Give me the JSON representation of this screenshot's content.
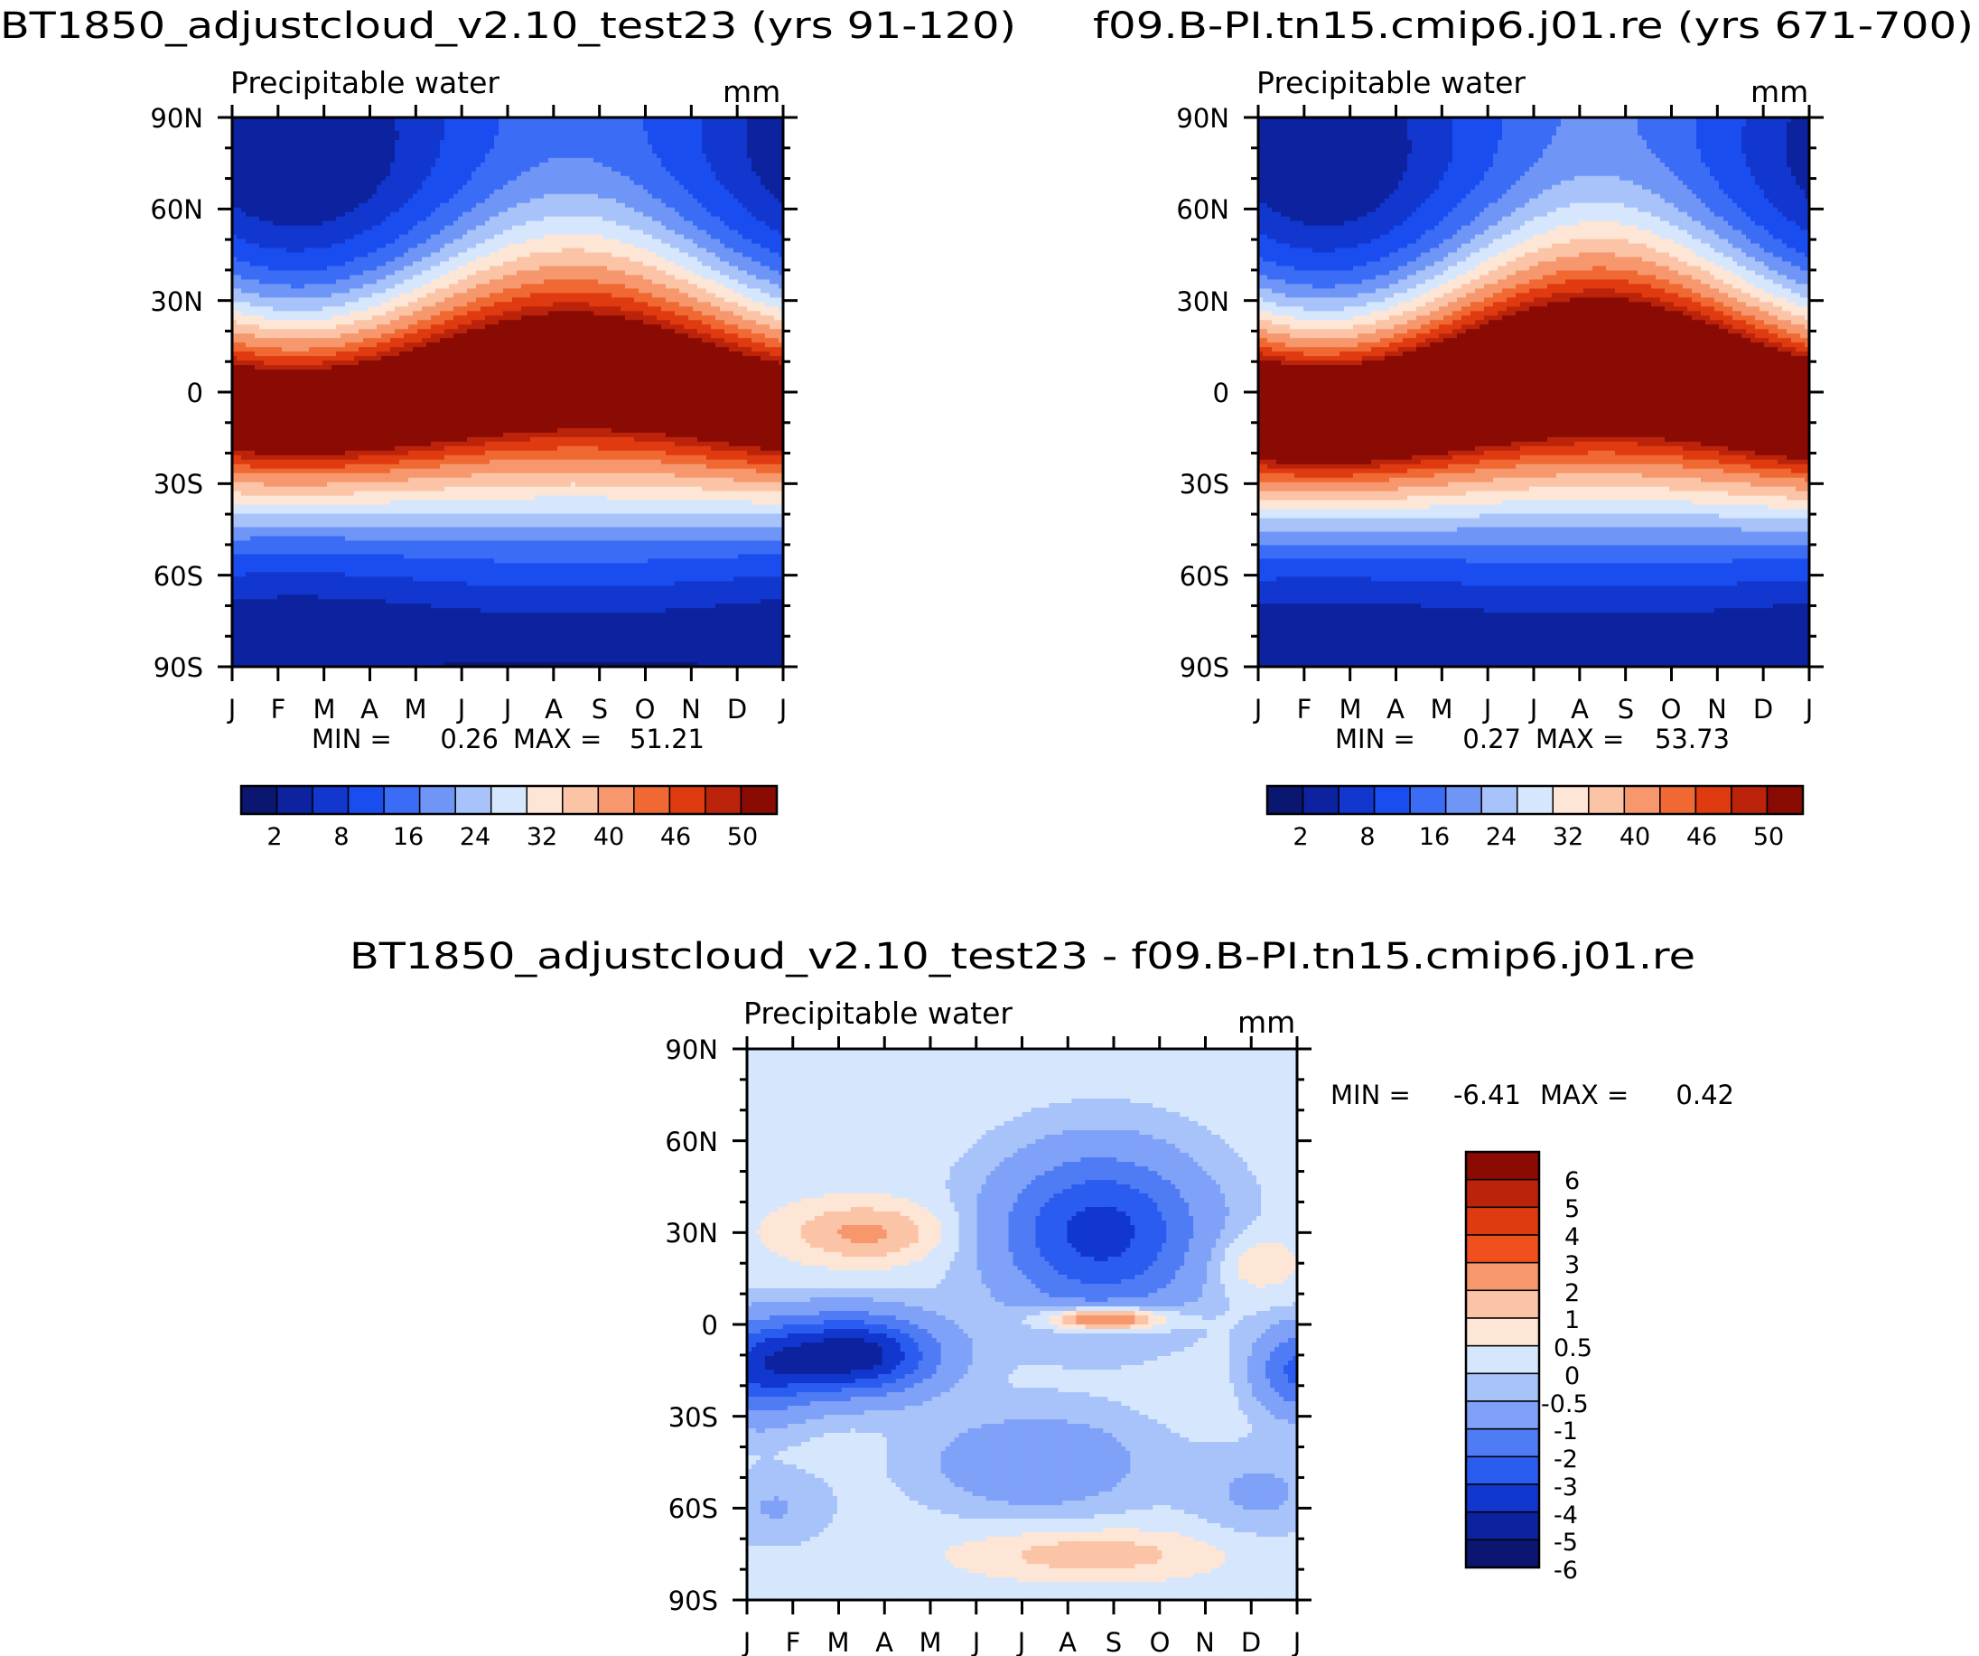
{
  "chart_data": [
    {
      "type": "heatmap",
      "title": "BT1850_adjustcloud_v2.10_test23 (yrs 91-120)",
      "subtitle": "Precipitable water",
      "units": "mm",
      "x_ticks": [
        "J",
        "F",
        "M",
        "A",
        "M",
        "J",
        "J",
        "A",
        "S",
        "O",
        "N",
        "D",
        "J"
      ],
      "y_ticks": [
        "90N",
        "60N",
        "30N",
        "0",
        "30S",
        "60S",
        "90S"
      ],
      "min_label": "MIN =",
      "min_value": "0.26",
      "max_label": "MAX =",
      "max_value": "51.21",
      "legend_labels": [
        "2",
        "8",
        "16",
        "24",
        "32",
        "40",
        "46",
        "50"
      ],
      "colors": [
        "#0a1670",
        "#0c229f",
        "#1237cf",
        "#1a4df0",
        "#3b6cf5",
        "#6f96f7",
        "#a8c3fa",
        "#d6e7fd",
        "#fde6d6",
        "#fbc4a6",
        "#f6976d",
        "#f06832",
        "#e03a10",
        "#bb230a",
        "#8a0a04"
      ],
      "field": {
        "equator_peak": 49,
        "peak_month": 7.4,
        "itcz_shift": 7,
        "pole_n_winter": 2,
        "pole_n_summer": 12,
        "pole_s": 1.5
      }
    },
    {
      "type": "heatmap",
      "title": "f09.B-PI.tn15.cmip6.j01.re (yrs 671-700)",
      "subtitle": "Precipitable water",
      "units": "mm",
      "x_ticks": [
        "J",
        "F",
        "M",
        "A",
        "M",
        "J",
        "J",
        "A",
        "S",
        "O",
        "N",
        "D",
        "J"
      ],
      "y_ticks": [
        "90N",
        "60N",
        "30N",
        "0",
        "30S",
        "60S",
        "90S"
      ],
      "min_label": "MIN =",
      "min_value": "0.27",
      "max_label": "MAX =",
      "max_value": "53.73",
      "legend_labels": [
        "2",
        "8",
        "16",
        "24",
        "32",
        "40",
        "46",
        "50"
      ],
      "colors": [
        "#0a1670",
        "#0c229f",
        "#1237cf",
        "#1a4df0",
        "#3b6cf5",
        "#6f96f7",
        "#a8c3fa",
        "#d6e7fd",
        "#fde6d6",
        "#fbc4a6",
        "#f6976d",
        "#f06832",
        "#e03a10",
        "#bb230a",
        "#8a0a04"
      ],
      "field": {
        "equator_peak": 52,
        "peak_month": 7.4,
        "itcz_shift": 8,
        "pole_n_winter": 2.5,
        "pole_n_summer": 14,
        "pole_s": 1.6
      }
    },
    {
      "type": "heatmap",
      "title": "BT1850_adjustcloud_v2.10_test23 - f09.B-PI.tn15.cmip6.j01.re",
      "subtitle": "Precipitable water",
      "units": "mm",
      "x_ticks": [
        "J",
        "F",
        "M",
        "A",
        "M",
        "J",
        "J",
        "A",
        "S",
        "O",
        "N",
        "D",
        "J"
      ],
      "y_ticks": [
        "90N",
        "60N",
        "30N",
        "0",
        "30S",
        "60S",
        "90S"
      ],
      "min_label": "MIN =",
      "min_value": "-6.41",
      "max_label": "MAX =",
      "max_value": "0.42",
      "legend_labels": [
        "6",
        "5",
        "4",
        "3",
        "2",
        "1",
        "0.5",
        "0",
        "-0.5",
        "-1",
        "-2",
        "-3",
        "-4",
        "-5",
        "-6"
      ],
      "colors": [
        "#8a0a04",
        "#bb230a",
        "#e03a10",
        "#f0501e",
        "#f6976d",
        "#fbc4a6",
        "#fde6d6",
        "#d6e7fd",
        "#a8c3fa",
        "#7fa2f8",
        "#4f7cf5",
        "#2a5cf0",
        "#1237cf",
        "#0c229f",
        "#0a1670"
      ]
    }
  ]
}
